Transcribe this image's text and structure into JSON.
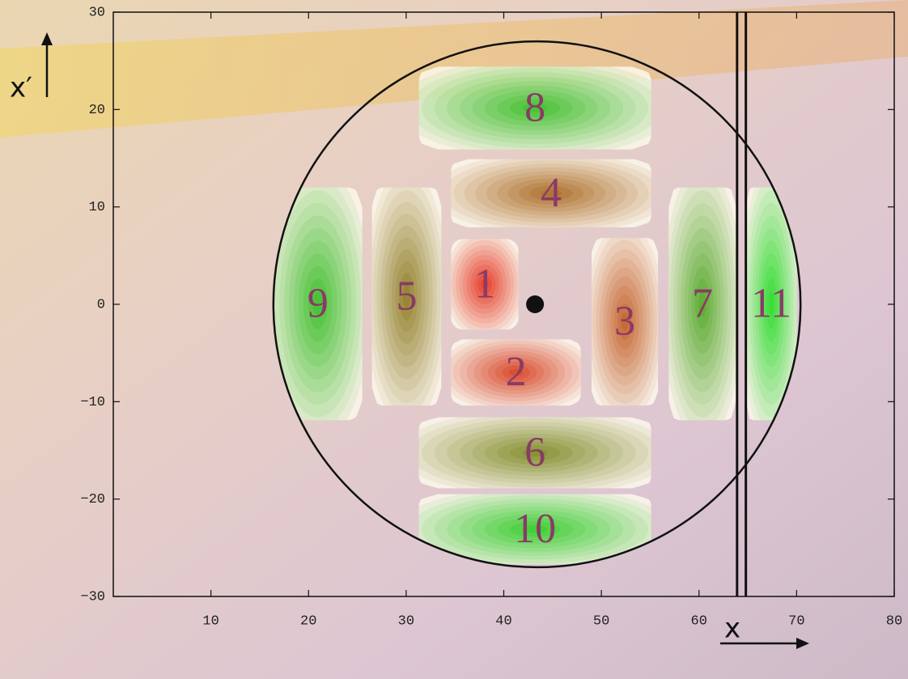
{
  "chart_data": {
    "type": "phase-space",
    "xlabel": "x",
    "ylabel": "x′",
    "xlim": [
      0,
      80
    ],
    "ylim": [
      -30,
      30
    ],
    "xticks": [
      10,
      20,
      30,
      40,
      50,
      60,
      70,
      80
    ],
    "yticks": [
      {
        "value": -30,
        "label": "−30"
      },
      {
        "value": -20,
        "label": "−20"
      },
      {
        "value": -10,
        "label": "−10"
      },
      0,
      10,
      20,
      30
    ],
    "aperture": {
      "center": [
        43.4,
        0
      ],
      "radius": 27
    },
    "beam": [
      43.2,
      0
    ],
    "septum": [
      63.9,
      64.8
    ],
    "blobs": [
      {
        "label": "1",
        "x": [
          34.6,
          41.5
        ],
        "y": [
          -2.6,
          6.7
        ],
        "color": "#e82a14"
      },
      {
        "label": "2",
        "x": [
          34.6,
          47.9
        ],
        "y": [
          -10.4,
          -3.6
        ],
        "color": "#d83a18"
      },
      {
        "label": "3",
        "x": [
          49.0,
          55.8
        ],
        "y": [
          -10.4,
          6.8
        ],
        "color": "#c25a1c"
      },
      {
        "label": "4",
        "x": [
          34.6,
          55.1
        ],
        "y": [
          7.9,
          14.9
        ],
        "color": "#a8661a"
      },
      {
        "label": "5",
        "x": [
          26.5,
          33.6
        ],
        "y": [
          -10.4,
          12.0
        ],
        "color": "#8a7a1c"
      },
      {
        "label": "6",
        "x": [
          31.3,
          55.1
        ],
        "y": [
          -18.9,
          -11.6
        ],
        "color": "#7a8a1c"
      },
      {
        "label": "7",
        "x": [
          56.9,
          63.8
        ],
        "y": [
          -11.9,
          12.0
        ],
        "color": "#4aaa1c"
      },
      {
        "label": "8",
        "x": [
          31.3,
          55.1
        ],
        "y": [
          15.9,
          24.4
        ],
        "color": "#30c020"
      },
      {
        "label": "9",
        "x": [
          16.4,
          25.5
        ],
        "y": [
          -11.9,
          12.0
        ],
        "color": "#30c020"
      },
      {
        "label": "10",
        "x": [
          31.3,
          55.1
        ],
        "y": [
          -26.7,
          -19.5
        ],
        "color": "#28d020"
      },
      {
        "label": "11",
        "x": [
          64.8,
          70.0
        ],
        "y": [
          -11.9,
          12.0
        ],
        "color": "#20e020"
      }
    ]
  }
}
